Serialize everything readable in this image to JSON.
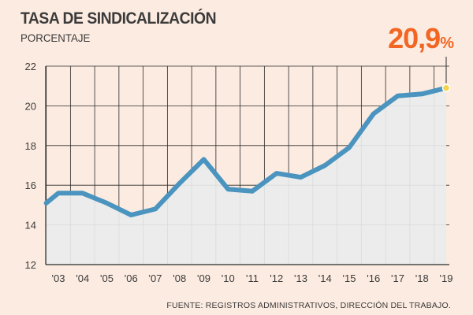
{
  "header": {
    "title": "TASA DE SINDICALIZACIÓN",
    "subtitle": "PORCENTAJE",
    "highlight_value": "20,9",
    "highlight_unit": "%"
  },
  "footer": {
    "source": "FUENTE: REGISTROS ADMINISTRATIVOS, DIRECCIÓN DEL TRABAJO."
  },
  "colors": {
    "background": "#fcebe0",
    "line": "#4a94bf",
    "area": "#e9ecec",
    "highlight": "#f26522",
    "marker": "#f2d44a"
  },
  "chart_data": {
    "type": "area",
    "title": "TASA DE SINDICALIZACIÓN",
    "ylabel": "PORCENTAJE",
    "xlabel": "",
    "ylim": [
      12,
      22
    ],
    "yticks": [
      "12",
      "14",
      "16",
      "18",
      "20",
      "22"
    ],
    "xticks": [
      "'03",
      "'04",
      "'05",
      "'06",
      "'07",
      "'08",
      "'09",
      "'10",
      "'11",
      "'12",
      "'13",
      "'14",
      "'15",
      "'16",
      "'17",
      "'18",
      "'19"
    ],
    "grid": true,
    "x": [
      2002.5,
      2003,
      2004,
      2005,
      2006,
      2007,
      2008,
      2009,
      2010,
      2011,
      2012,
      2013,
      2014,
      2015,
      2016,
      2017,
      2018,
      2019
    ],
    "values": [
      15.1,
      15.6,
      15.6,
      15.1,
      14.5,
      14.8,
      16.1,
      17.3,
      15.8,
      15.7,
      16.6,
      16.4,
      17.0,
      17.9,
      19.6,
      20.5,
      20.6,
      20.9
    ],
    "annotation": {
      "x": 2019,
      "value": 20.9,
      "label": "20,9%"
    }
  }
}
